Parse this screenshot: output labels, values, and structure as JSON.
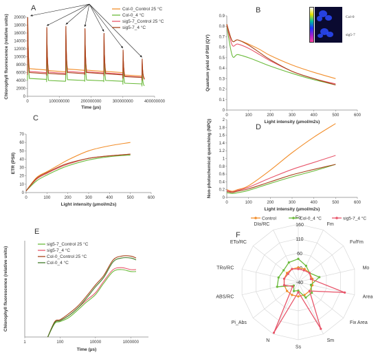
{
  "colors": {
    "orange": "#f28e2b",
    "green": "#6aba3a",
    "red": "#e8556a",
    "brown": "#a8451c",
    "darkgreen": "#3f7a25",
    "axis": "#888888",
    "grid": "#d9d9d9"
  },
  "chart_data": [
    {
      "id": "A",
      "panel_label": "A",
      "type": "line",
      "xlabel": "Time (µs)",
      "ylabel": "Chlorophyll fluorescence (relative units)",
      "xlim": [
        0,
        400000000
      ],
      "ylim": [
        0,
        20000
      ],
      "xticks": [
        "0",
        "100000000",
        "200000000",
        "300000000",
        "400000000"
      ],
      "yticks": [
        "0",
        "2000",
        "4000",
        "6000",
        "8000",
        "10000",
        "12000",
        "14000",
        "16000",
        "18000",
        "20000"
      ],
      "pulse_times": [
        0,
        60000000,
        120000000,
        180000000,
        240000000,
        300000000,
        360000000
      ],
      "legend_position": "top-right",
      "series": [
        {
          "name": "Col-0_Control 25 °C",
          "color": "orange",
          "peaks": [
            19500,
            17000,
            17000,
            16800,
            15200,
            11200,
            8800
          ],
          "baseline": [
            7000,
            6500,
            6900,
            6600,
            6300,
            5400,
            4800
          ]
        },
        {
          "name": "Col-0_4 °C",
          "color": "green",
          "peaks": [
            19200,
            16000,
            15500,
            15500,
            14200,
            9000,
            6500
          ],
          "baseline": [
            4500,
            4000,
            4200,
            4100,
            4000,
            3300,
            2800
          ]
        },
        {
          "name": "sig5-7_Control 25 °C",
          "color": "red",
          "peaks": [
            19800,
            17200,
            17500,
            17000,
            15800,
            11400,
            9200
          ],
          "baseline": [
            6300,
            6100,
            6300,
            6200,
            5900,
            5100,
            4600
          ]
        },
        {
          "name": "sig5-7_4 °C",
          "color": "brown",
          "peaks": [
            20000,
            17500,
            17800,
            17200,
            16000,
            11800,
            9500
          ],
          "baseline": [
            6000,
            5800,
            6000,
            6000,
            5700,
            5000,
            4500
          ]
        }
      ]
    },
    {
      "id": "B",
      "panel_label": "B",
      "type": "line",
      "xlabel": "Light intensity (µmol/m2s)",
      "ylabel": "Quantum yield of PSII (QY)",
      "xlim": [
        0,
        600
      ],
      "ylim": [
        0,
        0.9
      ],
      "xticks": [
        "0",
        "100",
        "200",
        "300",
        "400",
        "500",
        "600"
      ],
      "yticks": [
        "0",
        "0.1",
        "0.2",
        "0.3",
        "0.4",
        "0.5",
        "0.6",
        "0.7",
        "0.8",
        "0.9"
      ],
      "inset_labels": [
        "Col-0",
        "sig5-7"
      ],
      "series": [
        {
          "color": "orange",
          "x": [
            0,
            25,
            50,
            100,
            150,
            200,
            300,
            400,
            500
          ],
          "y": [
            0.82,
            0.66,
            0.67,
            0.63,
            0.58,
            0.52,
            0.43,
            0.36,
            0.3
          ]
        },
        {
          "color": "green",
          "x": [
            0,
            25,
            50,
            100,
            150,
            200,
            300,
            400,
            500
          ],
          "y": [
            0.8,
            0.52,
            0.53,
            0.5,
            0.46,
            0.42,
            0.35,
            0.29,
            0.24
          ]
        },
        {
          "color": "red",
          "x": [
            0,
            25,
            50,
            100,
            150,
            200,
            300,
            400,
            500
          ],
          "y": [
            0.81,
            0.62,
            0.63,
            0.59,
            0.53,
            0.47,
            0.37,
            0.3,
            0.25
          ]
        },
        {
          "color": "brown",
          "x": [
            0,
            25,
            50,
            100,
            150,
            200,
            300,
            400,
            500
          ],
          "y": [
            0.82,
            0.66,
            0.67,
            0.62,
            0.55,
            0.48,
            0.37,
            0.3,
            0.24
          ]
        }
      ]
    },
    {
      "id": "C",
      "panel_label": "C",
      "type": "line",
      "xlabel": "Light intensity (µmol/m2s)",
      "ylabel": "ETR (PSII)",
      "xlim": [
        0,
        600
      ],
      "ylim": [
        0,
        70
      ],
      "xticks": [
        "0",
        "100",
        "200",
        "300",
        "400",
        "500",
        "600"
      ],
      "yticks": [
        "0",
        "10",
        "20",
        "30",
        "40",
        "50",
        "60",
        "70"
      ],
      "series": [
        {
          "color": "orange",
          "x": [
            0,
            50,
            100,
            150,
            200,
            300,
            400,
            500
          ],
          "y": [
            2,
            18,
            25,
            32,
            39,
            50,
            56,
            60
          ]
        },
        {
          "color": "green",
          "x": [
            0,
            50,
            100,
            150,
            200,
            300,
            400,
            500
          ],
          "y": [
            2,
            14,
            21,
            27,
            32,
            39,
            43,
            45
          ]
        },
        {
          "color": "red",
          "x": [
            0,
            50,
            100,
            150,
            200,
            300,
            400,
            500
          ],
          "y": [
            2,
            16,
            23,
            29,
            34,
            41,
            44,
            46
          ]
        },
        {
          "color": "brown",
          "x": [
            0,
            50,
            100,
            150,
            200,
            300,
            400,
            500
          ],
          "y": [
            2,
            17,
            24,
            30,
            35,
            41,
            44,
            46
          ]
        }
      ]
    },
    {
      "id": "D",
      "panel_label": "D",
      "type": "line",
      "xlabel": "Light intensity (µmol/m2s)",
      "ylabel": "Non-photochemical quenching (NPQ)",
      "xlim": [
        0,
        600
      ],
      "ylim": [
        0,
        2
      ],
      "xticks": [
        "0",
        "100",
        "200",
        "300",
        "400",
        "500",
        "600"
      ],
      "yticks": [
        "0",
        "0.2",
        "0.4",
        "0.6",
        "0.8",
        "1",
        "1.2",
        "1.4",
        "1.6",
        "1.8",
        "2"
      ],
      "series": [
        {
          "color": "orange",
          "x": [
            0,
            25,
            50,
            100,
            200,
            300,
            400,
            500
          ],
          "y": [
            0.2,
            0.16,
            0.2,
            0.3,
            0.7,
            1.15,
            1.55,
            1.9
          ]
        },
        {
          "color": "green",
          "x": [
            0,
            25,
            50,
            100,
            200,
            300,
            400,
            500
          ],
          "y": [
            0.12,
            0.1,
            0.12,
            0.18,
            0.36,
            0.53,
            0.68,
            0.85
          ]
        },
        {
          "color": "red",
          "x": [
            0,
            25,
            50,
            100,
            200,
            300,
            400,
            500
          ],
          "y": [
            0.18,
            0.14,
            0.18,
            0.26,
            0.5,
            0.72,
            0.9,
            1.08
          ]
        },
        {
          "color": "brown",
          "x": [
            0,
            25,
            50,
            100,
            200,
            300,
            400,
            500
          ],
          "y": [
            0.15,
            0.13,
            0.16,
            0.22,
            0.4,
            0.58,
            0.72,
            0.85
          ]
        }
      ]
    },
    {
      "id": "E",
      "panel_label": "E",
      "type": "line",
      "xlabel": "Time (µs)",
      "ylabel": "Chlorophyll fluorescence (relative units)",
      "x_scale": "log",
      "xlim": [
        1,
        10000000
      ],
      "ylim": [
        0,
        50
      ],
      "xticks": [
        "1",
        "100",
        "10000",
        "1000000"
      ],
      "legend_position": "top-left",
      "series": [
        {
          "name": "sig5-7_Control 25 °C",
          "color": "green",
          "x": [
            20,
            50,
            100,
            300,
            1000,
            3000,
            10000,
            30000,
            100000,
            300000,
            1000000,
            2000000
          ],
          "y": [
            0,
            7,
            8,
            10,
            14,
            18,
            22,
            28,
            34,
            35,
            34,
            34
          ]
        },
        {
          "name": "sig5-7_4 °C",
          "color": "red",
          "x": [
            20,
            50,
            100,
            300,
            1000,
            3000,
            10000,
            30000,
            100000,
            300000,
            1000000,
            2000000
          ],
          "y": [
            0,
            7.5,
            8.5,
            11,
            15,
            19,
            23,
            29,
            35,
            36,
            35,
            35
          ]
        },
        {
          "name": "Col-0_Control 25 °C",
          "color": "brown",
          "x": [
            20,
            50,
            100,
            300,
            1000,
            3000,
            10000,
            30000,
            100000,
            300000,
            1000000,
            2000000
          ],
          "y": [
            0,
            8,
            9,
            12,
            16,
            21,
            27,
            32,
            40,
            42,
            42,
            41
          ]
        },
        {
          "name": "Col-0_4 °C",
          "color": "darkgreen",
          "x": [
            20,
            50,
            100,
            300,
            1000,
            3000,
            10000,
            30000,
            100000,
            300000,
            1000000,
            2000000
          ],
          "y": [
            0,
            7.5,
            8.5,
            11,
            15,
            20,
            26,
            31,
            39,
            41,
            41,
            40
          ]
        }
      ]
    },
    {
      "id": "F",
      "panel_label": "F",
      "type": "radar",
      "axes": [
        "Fo",
        "Fm",
        "Fv/Fm",
        "Mo",
        "Area",
        "Fix Area",
        "Sm",
        "Ss",
        "N",
        "Pi_Abs",
        "ABS/RC",
        "TRo/RC",
        "ETo/RC",
        "DIo/RC"
      ],
      "rlim": [
        -40,
        160
      ],
      "rticks": [
        "160",
        "110",
        "60",
        "10",
        "-40"
      ],
      "legend_position": "top",
      "series": [
        {
          "name": "Control",
          "color": "orange",
          "values": [
            10,
            10,
            10,
            10,
            10,
            10,
            10,
            10,
            10,
            10,
            10,
            10,
            10,
            10
          ]
        },
        {
          "name": "Col-0_4 °C",
          "color": "green",
          "values": [
            40,
            22,
            10,
            35,
            5,
            20,
            20,
            -10,
            -5,
            -20,
            35,
            30,
            25,
            35
          ]
        },
        {
          "name": "sig5-7_4 °C",
          "color": "red",
          "values": [
            5,
            5,
            10,
            5,
            125,
            10,
            140,
            -5,
            155,
            -15,
            10,
            10,
            5,
            10
          ]
        }
      ]
    }
  ]
}
